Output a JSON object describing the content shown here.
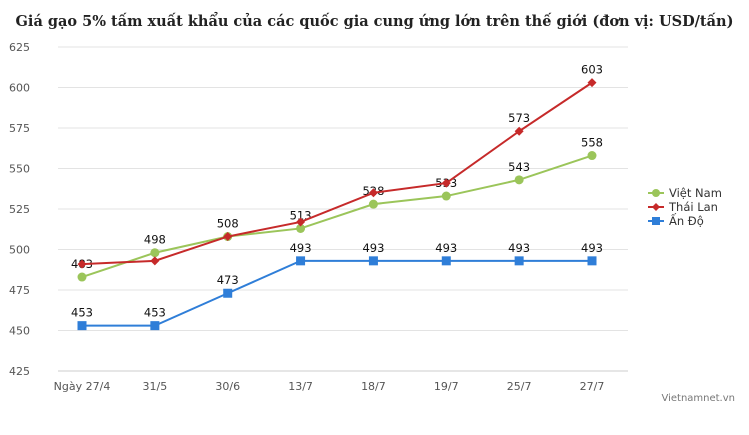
{
  "chart_data": {
    "type": "line",
    "title": "Giá gạo 5% tấm xuất khẩu của các quốc gia cung ứng lớn trên thế giới (đơn vị: USD/tấn)",
    "categories": [
      "Ngày 27/4",
      "31/5",
      "30/6",
      "13/7",
      "18/7",
      "19/7",
      "25/7",
      "27/7"
    ],
    "ylim": [
      425,
      625
    ],
    "yticks": [
      425,
      450,
      475,
      500,
      525,
      550,
      575,
      600,
      625
    ],
    "grid": true,
    "legend": "right",
    "series": [
      {
        "name": "Việt Nam",
        "color": "#9bc55a",
        "marker": "circle",
        "values": [
          483,
          498,
          508,
          513,
          528,
          533,
          543,
          558
        ],
        "labels": [
          true,
          true,
          true,
          true,
          true,
          true,
          true,
          true
        ]
      },
      {
        "name": "Thái Lan",
        "color": "#c62a2a",
        "marker": "diamond",
        "values": [
          491,
          493,
          508,
          517,
          535,
          541,
          573,
          603
        ],
        "labels": [
          false,
          false,
          false,
          false,
          false,
          false,
          true,
          true
        ]
      },
      {
        "name": "Ấn Độ",
        "color": "#2f7ed8",
        "marker": "square",
        "values": [
          453,
          453,
          473,
          493,
          493,
          493,
          493,
          493
        ],
        "labels": [
          true,
          true,
          true,
          true,
          true,
          true,
          true,
          true
        ]
      }
    ]
  },
  "credit": "Vietnamnet.vn"
}
